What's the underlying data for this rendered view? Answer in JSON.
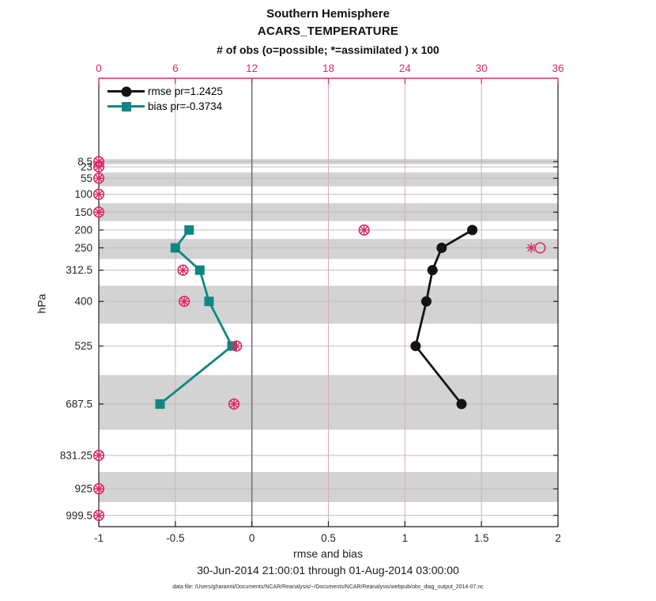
{
  "figure": {
    "title_line1": "Southern Hemisphere",
    "title_line2": "ACARS_TEMPERATURE",
    "obs_axis_label": "# of obs (o=possible; *=assimilated ) x 100",
    "xlabel": "rmse and bias",
    "ylabel": "hPa",
    "timestamp": "30-Jun-2014 21:00:01 through 01-Aug-2014 03:00:00",
    "datafile_caption": "data file: /Users/gharamti/Documents/NCAR/Reanalysis/~/Documents/NCAR/Reanalysis/webpub/obs_diag_output_2014-07.nc",
    "legend": {
      "rmse_label": "rmse pr=1.2425",
      "bias_label": "bias pr=-0.3734"
    }
  },
  "colors": {
    "obs_pink": "#dd2a65",
    "grid_pink": "#d8aab8",
    "bias_teal": "#0f8684",
    "rmse_black": "#141414",
    "band_gray": "#d3d3d3",
    "grid_gray": "#bebebe",
    "zero_line": "#826e6e",
    "axis_dark": "#1f1f1f",
    "tick_text": "#262626"
  },
  "chart_data": {
    "type": "line",
    "title": "Southern Hemisphere / ACARS_TEMPERATURE vertical profile",
    "grid": true,
    "legend_position": "top-left inside",
    "y_axis": {
      "label": "hPa",
      "scale": "linear-reversed (pressure increases downward)",
      "ticks": [
        8.5,
        23,
        55,
        100,
        150,
        200,
        250,
        312.5,
        400,
        525,
        687.5,
        831.25,
        925,
        999.5
      ],
      "tick_labels": [
        "8.5",
        "23",
        "55",
        "100",
        "150",
        "200",
        "250",
        "312.5",
        "400",
        "525",
        "687.5",
        "831.25",
        "925",
        "999.5"
      ],
      "lim": [
        -225,
        1031
      ],
      "shaded_levels": [
        8.5,
        55,
        150,
        250,
        400,
        687.5,
        925
      ]
    },
    "x_bottom": {
      "label": "rmse and bias",
      "ticks": [
        -1,
        -0.5,
        0,
        0.5,
        1,
        1.5,
        2
      ],
      "tick_labels": [
        "-1",
        "-0.5",
        "0",
        "0.5",
        "1",
        "1.5",
        "2"
      ],
      "lim": [
        -1,
        2
      ],
      "zero_reference_line": 0
    },
    "x_top": {
      "label": "# of obs (o=possible; *=assimilated ) x 100",
      "ticks": [
        0,
        6,
        12,
        18,
        24,
        30,
        36
      ],
      "tick_labels": [
        "0",
        "6",
        "12",
        "18",
        "24",
        "30",
        "36"
      ],
      "lim": [
        0,
        36
      ]
    },
    "series": [
      {
        "name": "rmse",
        "legend": "rmse pr=1.2425",
        "marker": "circle",
        "color_key": "rmse_black",
        "levels_hPa": [
          200,
          250,
          312.5,
          400,
          525,
          687.5
        ],
        "values": [
          1.44,
          1.24,
          1.18,
          1.14,
          1.07,
          1.37
        ]
      },
      {
        "name": "bias",
        "legend": "bias pr=-0.3734",
        "marker": "square",
        "color_key": "bias_teal",
        "levels_hPa": [
          200,
          250,
          312.5,
          400,
          525,
          687.5
        ],
        "values": [
          -0.41,
          -0.5,
          -0.34,
          -0.28,
          -0.13,
          -0.6
        ]
      }
    ],
    "obs_counts_x100": [
      {
        "level_hPa": 8.5,
        "possible": 0,
        "assimilated": 0
      },
      {
        "level_hPa": 23,
        "possible": 0,
        "assimilated": 0
      },
      {
        "level_hPa": 55,
        "possible": 0,
        "assimilated": 0
      },
      {
        "level_hPa": 100,
        "possible": 0,
        "assimilated": 0
      },
      {
        "level_hPa": 150,
        "possible": 0,
        "assimilated": 0
      },
      {
        "level_hPa": 200,
        "possible": 20.8,
        "assimilated": 20.8
      },
      {
        "level_hPa": 250,
        "possible": 34.6,
        "assimilated": 33.9
      },
      {
        "level_hPa": 312.5,
        "possible": 6.6,
        "assimilated": 6.6
      },
      {
        "level_hPa": 400,
        "possible": 6.7,
        "assimilated": 6.7
      },
      {
        "level_hPa": 525,
        "possible": 10.8,
        "assimilated": 10.8
      },
      {
        "level_hPa": 687.5,
        "possible": 10.6,
        "assimilated": 10.6
      },
      {
        "level_hPa": 831.25,
        "possible": 0,
        "assimilated": 0
      },
      {
        "level_hPa": 925,
        "possible": 0,
        "assimilated": 0
      },
      {
        "level_hPa": 999.5,
        "possible": 0,
        "assimilated": 0
      }
    ]
  }
}
